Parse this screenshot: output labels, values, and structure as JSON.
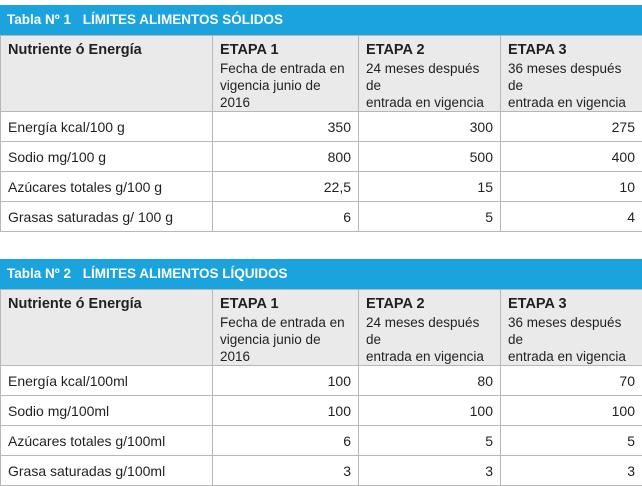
{
  "tables": [
    {
      "id": "Tabla Nº 1",
      "name": "LÍMITES ALIMENTOS SÓLIDOS",
      "header": {
        "col0": "Nutriente ó Energía",
        "stages": [
          {
            "title": "ETAPA 1",
            "line1": "Fecha de entrada en",
            "line2": "vigencia junio de 2016"
          },
          {
            "title": "ETAPA 2",
            "line1": "24 meses después de",
            "line2": "entrada en vigencia"
          },
          {
            "title": "ETAPA 3",
            "line1": "36 meses después de",
            "line2": "entrada en vigencia"
          }
        ]
      },
      "rows": [
        {
          "label": "Energía kcal/100 g",
          "values": [
            "350",
            "300",
            "275"
          ]
        },
        {
          "label": "Sodio mg/100 g",
          "values": [
            "800",
            "500",
            "400"
          ]
        },
        {
          "label": "Azúcares totales g/100 g",
          "values": [
            "22,5",
            "15",
            "10"
          ]
        },
        {
          "label": "Grasas saturadas g/ 100 g",
          "values": [
            "6",
            "5",
            "4"
          ]
        }
      ]
    },
    {
      "id": "Tabla Nº 2",
      "name": "LÍMITES ALIMENTOS LÍQUIDOS",
      "header": {
        "col0": "Nutriente ó Energía",
        "stages": [
          {
            "title": "ETAPA 1",
            "line1": "Fecha de entrada en",
            "line2": "vigencia junio de 2016"
          },
          {
            "title": "ETAPA 2",
            "line1": "24 meses después de",
            "line2": "entrada en vigencia"
          },
          {
            "title": "ETAPA 3",
            "line1": "36 meses después de",
            "line2": "entrada en vigencia"
          }
        ]
      },
      "rows": [
        {
          "label": "Energía kcal/100ml",
          "values": [
            "100",
            "80",
            "70"
          ]
        },
        {
          "label": "Sodio mg/100ml",
          "values": [
            "100",
            "100",
            "100"
          ]
        },
        {
          "label": "Azúcares totales g/100ml",
          "values": [
            "6",
            "5",
            "5"
          ]
        },
        {
          "label": "Grasa saturadas g/100ml",
          "values": [
            "3",
            "3",
            "3"
          ]
        }
      ]
    }
  ],
  "colors": {
    "title_bar": "#1aa3dc",
    "header_bg": "#eaeaea",
    "border": "#b7b7b7"
  }
}
